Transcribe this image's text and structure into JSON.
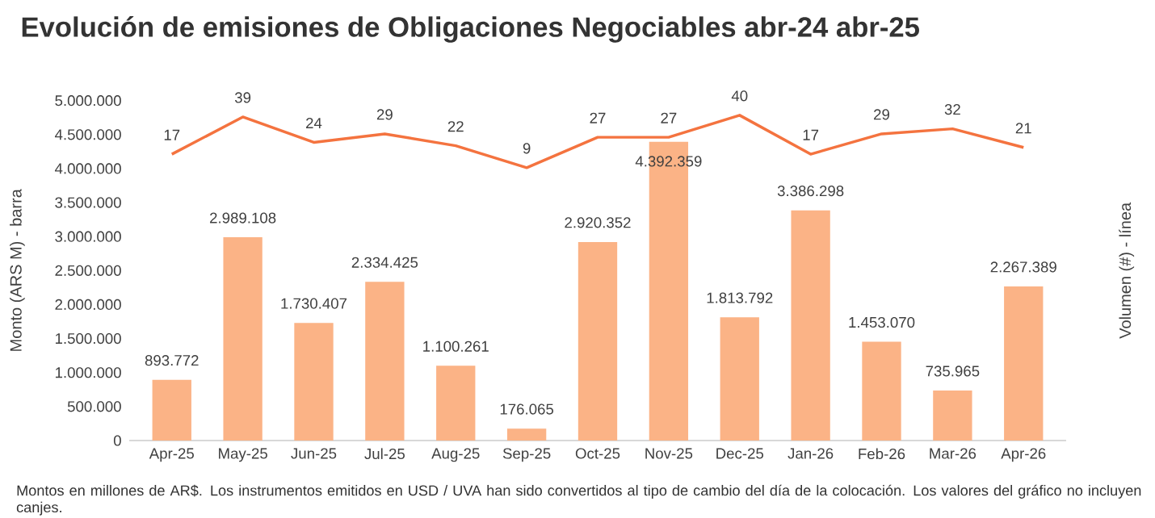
{
  "chart_data": {
    "type": "bar",
    "title": "Evolución de emisiones de Obligaciones Negociables abr-24 abr-25",
    "ylabel": "Monto (ARS M) - barra",
    "y2label": "Volumen (#) - línea",
    "categories": [
      "Apr-25",
      "May-25",
      "Jun-25",
      "Jul-25",
      "Aug-25",
      "Sep-25",
      "Oct-25",
      "Nov-25",
      "Dec-25",
      "Jan-26",
      "Feb-26",
      "Mar-26",
      "Apr-26"
    ],
    "ylim": [
      0,
      5000000
    ],
    "yticks": [
      0,
      {
        "value": 500000,
        "label": "500.000"
      },
      {
        "value": 1000000,
        "label": "1.000.000"
      },
      {
        "value": 1500000,
        "label": "1.500.000"
      },
      {
        "value": 2000000,
        "label": "2.000.000"
      },
      {
        "value": 2500000,
        "label": "2.500.000"
      },
      {
        "value": 3000000,
        "label": "3.000.000"
      },
      {
        "value": 3500000,
        "label": "3.500.000"
      },
      {
        "value": 4000000,
        "label": "4.000.000"
      },
      {
        "value": 4500000,
        "label": "4.500.000"
      },
      {
        "value": 5000000,
        "label": "5.000.000"
      }
    ],
    "series": [
      {
        "color": "#fbb386",
        "values": [
          893772,
          2989108,
          1730407,
          2334425,
          1100261,
          176065,
          2920352,
          4392359,
          1813792,
          3386298,
          1453070,
          735965,
          2267389
        ],
        "value_labels": [
          "893.772",
          "2.989.108",
          "1.730.407",
          "2.334.425",
          "1.100.261",
          "176.065",
          "2.920.352",
          "4.392.359",
          "1.813.792",
          "3.386.298",
          "1.453.070",
          "735.965",
          "2.267.389"
        ]
      },
      {
        "type": "line",
        "axis": "y2",
        "color": "#f4733f",
        "values": [
          17,
          39,
          24,
          29,
          22,
          9,
          27,
          27,
          40,
          17,
          29,
          32,
          21
        ],
        "value_labels": [
          "17",
          "39",
          "24",
          "29",
          "22",
          "9",
          "27",
          "27",
          "40",
          "17",
          "29",
          "32",
          "21"
        ]
      }
    ],
    "annotations": [
      "Montos en millones de AR$. Los instrumentos emitidos en USD / UVA han sido convertidos al tipo de cambio del día de la colocación. Los valores del gráfico no incluyen canjes."
    ]
  }
}
